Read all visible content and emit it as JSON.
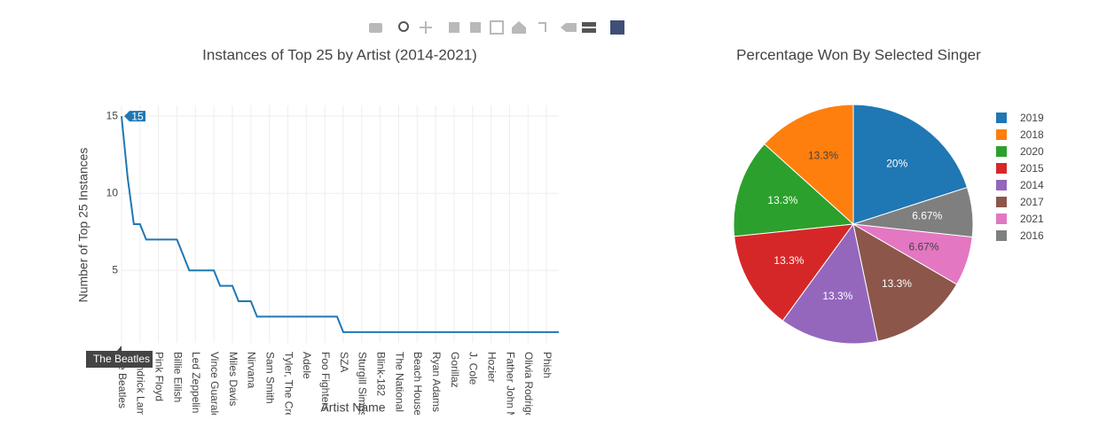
{
  "chart_data": [
    {
      "type": "line",
      "title": "Instances of Top 25 by Artist (2014-2021)",
      "x_label": "Artist Name",
      "y_label": "Number of Top 25 Instances",
      "categories": [
        "The Beatles",
        null,
        null,
        "Kendrick Lamar",
        null,
        null,
        "Pink Floyd",
        null,
        null,
        "Billie Eilish",
        null,
        null,
        "Led Zeppelin",
        null,
        null,
        "Vince Guaraldi",
        null,
        null,
        "Miles Davis",
        null,
        null,
        "Nirvana",
        null,
        null,
        "Sam Smith",
        null,
        null,
        "Tyler, The Creator",
        null,
        null,
        "Adele",
        null,
        null,
        "Foo Fighters",
        null,
        null,
        "SZA",
        null,
        null,
        "Sturgill Simpson",
        null,
        null,
        "Blink-182",
        null,
        null,
        "The National",
        null,
        null,
        "Beach House",
        null,
        null,
        "Ryan Adams",
        null,
        null,
        "Gorillaz",
        null,
        null,
        "J. Cole",
        null,
        null,
        "Hozier",
        null,
        null,
        "Father John Misty",
        null,
        null,
        "Olivia Rodrigo",
        null,
        null,
        "Phish",
        null,
        null
      ],
      "series": [
        {
          "color": "#1f77b4",
          "values": [
            15,
            11,
            8,
            8,
            7,
            7,
            7,
            7,
            7,
            7,
            6,
            5,
            5,
            5,
            5,
            5,
            4,
            4,
            4,
            3,
            3,
            3,
            2,
            2,
            2,
            2,
            2,
            2,
            2,
            2,
            2,
            2,
            2,
            2,
            2,
            2,
            1,
            1,
            1,
            1,
            1,
            1,
            1,
            1,
            1,
            1,
            1,
            1,
            1,
            1,
            1,
            1,
            1,
            1,
            1,
            1,
            1,
            1,
            1,
            1,
            1,
            1,
            1,
            1,
            1,
            1,
            1,
            1,
            1,
            1,
            1,
            1
          ]
        }
      ],
      "ylim": [
        0.3,
        15.7
      ],
      "yticks": [
        5,
        10,
        15
      ],
      "grid": true
    },
    {
      "type": "pie",
      "title": "Percentage Won By Selected Singer",
      "categories": [
        "2019",
        "2018",
        "2020",
        "2015",
        "2014",
        "2017",
        "2021",
        "2016"
      ],
      "values": [
        20,
        13.3,
        13.3,
        13.3,
        13.3,
        13.3,
        6.67,
        6.67
      ],
      "value_labels": [
        "20%",
        "13.3%",
        "13.3%",
        "13.3%",
        "13.3%",
        "13.3%",
        "6.67%",
        "6.67%"
      ],
      "colors": [
        "#1f77b4",
        "#ff7f0e",
        "#2ca02c",
        "#d62728",
        "#9467bd",
        "#8c564b",
        "#e377c2",
        "#7f7f7f"
      ],
      "legend": "right"
    }
  ]
}
